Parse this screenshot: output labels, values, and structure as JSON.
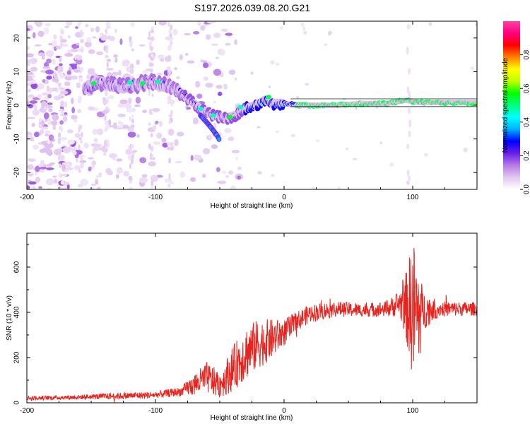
{
  "title": "S197.2026.039.08.20.G21",
  "colors": {
    "trace": "#e8231e",
    "axis": "#000000",
    "background": "#ffffff"
  },
  "chart_data": [
    {
      "type": "heatmap",
      "name": "spectrogram",
      "xlabel": "Height of straight line (km)",
      "ylabel": "Frequency (Hz)",
      "xlim": [
        -200,
        150
      ],
      "ylim": [
        -25,
        25
      ],
      "xticks": [
        -200,
        -100,
        0,
        100
      ],
      "yticks": [
        -20,
        -10,
        0,
        10,
        20
      ],
      "colorbar": {
        "label": "Normalized spectral amplitude",
        "range": [
          0,
          1
        ],
        "ticks": [
          "0.0",
          "0.2",
          "0.4",
          "0.6",
          "0.8"
        ],
        "colormap": [
          "#ffffff",
          "#e2c8f0",
          "#b87be6",
          "#6a1fe8",
          "#0000ff",
          "#00b0ff",
          "#00ffff",
          "#00ff80",
          "#00ff00",
          "#c0ff00",
          "#ffff00",
          "#ff8000",
          "#ff0000",
          "#ff0080",
          "#ff40a0"
        ]
      },
      "ridge": [
        {
          "x": -155,
          "y": 5
        },
        {
          "x": -145,
          "y": 7
        },
        {
          "x": -135,
          "y": 6
        },
        {
          "x": -125,
          "y": 5.5
        },
        {
          "x": -115,
          "y": 6
        },
        {
          "x": -105,
          "y": 7
        },
        {
          "x": -95,
          "y": 6
        },
        {
          "x": -85,
          "y": 5
        },
        {
          "x": -75,
          "y": 2
        },
        {
          "x": -65,
          "y": -1
        },
        {
          "x": -55,
          "y": -3
        },
        {
          "x": -45,
          "y": -4
        },
        {
          "x": -38,
          "y": -3
        },
        {
          "x": -30,
          "y": -1
        },
        {
          "x": -22,
          "y": 0
        },
        {
          "x": -15,
          "y": 1.5
        },
        {
          "x": -8,
          "y": 0.5
        },
        {
          "x": 0,
          "y": 0.5
        },
        {
          "x": 10,
          "y": 0
        },
        {
          "x": 20,
          "y": 0
        },
        {
          "x": 40,
          "y": 0
        },
        {
          "x": 60,
          "y": 0.5
        },
        {
          "x": 80,
          "y": 0.5
        },
        {
          "x": 95,
          "y": 1.5
        },
        {
          "x": 105,
          "y": 0.8
        },
        {
          "x": 120,
          "y": 0.8
        },
        {
          "x": 150,
          "y": 0.8
        }
      ],
      "branch": [
        {
          "x": -65,
          "y": -3
        },
        {
          "x": -58,
          "y": -6
        },
        {
          "x": -52,
          "y": -9
        },
        {
          "x": -50,
          "y": -10.5
        }
      ]
    },
    {
      "type": "line",
      "name": "snr",
      "xlabel": "Height of straight line (km)",
      "ylabel": "SNR (10 * v/v)",
      "xlim": [
        -200,
        150
      ],
      "ylim": [
        0,
        750
      ],
      "xticks": [
        -200,
        -100,
        0,
        100
      ],
      "yticks": [
        0,
        200,
        400,
        600
      ],
      "envelope": [
        {
          "x": -200,
          "mean": 20,
          "amp": 10
        },
        {
          "x": -160,
          "mean": 25,
          "amp": 10
        },
        {
          "x": -130,
          "mean": 30,
          "amp": 15
        },
        {
          "x": -100,
          "mean": 35,
          "amp": 15
        },
        {
          "x": -80,
          "mean": 50,
          "amp": 20
        },
        {
          "x": -70,
          "mean": 80,
          "amp": 50
        },
        {
          "x": -60,
          "mean": 110,
          "amp": 70
        },
        {
          "x": -50,
          "mean": 80,
          "amp": 60
        },
        {
          "x": -40,
          "mean": 150,
          "amp": 100
        },
        {
          "x": -30,
          "mean": 220,
          "amp": 120
        },
        {
          "x": -20,
          "mean": 260,
          "amp": 110
        },
        {
          "x": -10,
          "mean": 280,
          "amp": 90
        },
        {
          "x": 0,
          "mean": 310,
          "amp": 60
        },
        {
          "x": 10,
          "mean": 360,
          "amp": 45
        },
        {
          "x": 20,
          "mean": 395,
          "amp": 40
        },
        {
          "x": 40,
          "mean": 415,
          "amp": 35
        },
        {
          "x": 60,
          "mean": 410,
          "amp": 30
        },
        {
          "x": 80,
          "mean": 415,
          "amp": 35
        },
        {
          "x": 90,
          "mean": 440,
          "amp": 60
        },
        {
          "x": 96,
          "mean": 420,
          "amp": 180
        },
        {
          "x": 100,
          "mean": 420,
          "amp": 320
        },
        {
          "x": 104,
          "mean": 380,
          "amp": 260
        },
        {
          "x": 108,
          "mean": 410,
          "amp": 90
        },
        {
          "x": 120,
          "mean": 415,
          "amp": 35
        },
        {
          "x": 150,
          "mean": 415,
          "amp": 30
        }
      ]
    }
  ]
}
